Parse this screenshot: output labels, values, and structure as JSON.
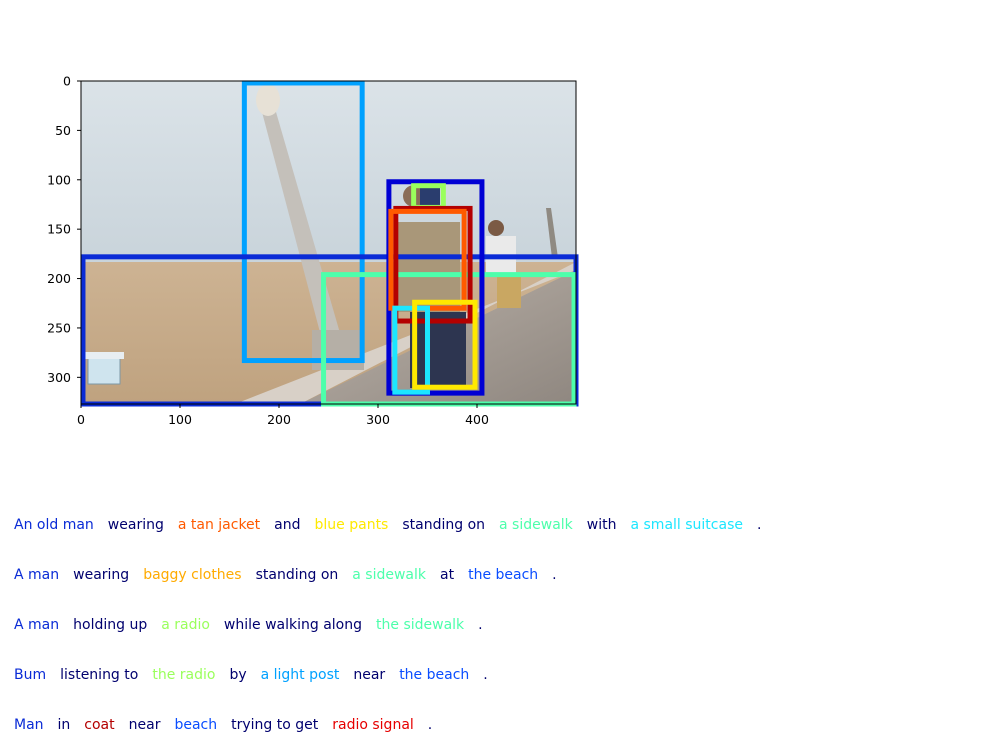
{
  "colors": {
    "phrase_old_man": "#0a2bd6",
    "phrase_tan_jacket": "#ff5a00",
    "phrase_blue_pants": "#ffe900",
    "phrase_sidewalk": "#4dffab",
    "phrase_suitcase": "#1ce6ff",
    "phrase_baggy_clothes": "#ffab00",
    "phrase_beach": "#0a4dff",
    "phrase_radio": "#9aff5c",
    "phrase_light_post": "#00a1ff",
    "phrase_coat": "#b40000",
    "phrase_radio_signal": "#e60000",
    "connector": "#00006e"
  },
  "plot": {
    "x_ticks": [
      "0",
      "100",
      "200",
      "300",
      "400"
    ],
    "y_ticks": [
      "0",
      "50",
      "100",
      "150",
      "200",
      "250",
      "300"
    ],
    "xlim": [
      0,
      500
    ],
    "ylim": [
      0,
      327
    ]
  },
  "boxes": [
    {
      "label": "a light post",
      "color": "#00a1ff",
      "x0": 165,
      "y0": 2,
      "x1": 284,
      "y1": 283
    },
    {
      "label": "the beach",
      "color": "#0a2bd6",
      "x0": 2,
      "y0": 178,
      "x1": 500,
      "y1": 327
    },
    {
      "label": "a sidewalk",
      "color": "#4dffab",
      "x0": 245,
      "y0": 196,
      "x1": 498,
      "y1": 327
    },
    {
      "label": "An old man",
      "color": "#0000d4",
      "x0": 311,
      "y0": 102,
      "x1": 405,
      "y1": 316
    },
    {
      "label": "the radio",
      "color": "#9aff5c",
      "x0": 336,
      "y0": 106,
      "x1": 366,
      "y1": 128
    },
    {
      "label": "coat",
      "color": "#b40000",
      "x0": 318,
      "y0": 129,
      "x1": 393,
      "y1": 243
    },
    {
      "label": "a tan jacket",
      "color": "#ff5a00",
      "x0": 313,
      "y0": 132,
      "x1": 387,
      "y1": 230
    },
    {
      "label": "a small suitcase",
      "color": "#1ce6ff",
      "x0": 317,
      "y0": 230,
      "x1": 350,
      "y1": 315
    },
    {
      "label": "blue pants",
      "color": "#ffe900",
      "x0": 337,
      "y0": 224,
      "x1": 398,
      "y1": 310
    }
  ],
  "captions": [
    [
      {
        "text": "An old man",
        "color": "#0a2bd6"
      },
      {
        "text": "wearing",
        "color": "#00006e"
      },
      {
        "text": "a tan jacket",
        "color": "#ff5a00"
      },
      {
        "text": "and",
        "color": "#00006e"
      },
      {
        "text": "blue pants",
        "color": "#ffe900"
      },
      {
        "text": "standing on",
        "color": "#00006e"
      },
      {
        "text": "a sidewalk",
        "color": "#4dffab"
      },
      {
        "text": "with",
        "color": "#00006e"
      },
      {
        "text": "a small suitcase",
        "color": "#1ce6ff"
      },
      {
        "text": ".",
        "color": "#00006e"
      }
    ],
    [
      {
        "text": "A man",
        "color": "#0a2bd6"
      },
      {
        "text": "wearing",
        "color": "#00006e"
      },
      {
        "text": "baggy clothes",
        "color": "#ffab00"
      },
      {
        "text": "standing on",
        "color": "#00006e"
      },
      {
        "text": "a sidewalk",
        "color": "#4dffab"
      },
      {
        "text": "at",
        "color": "#00006e"
      },
      {
        "text": "the beach",
        "color": "#0a4dff"
      },
      {
        "text": ".",
        "color": "#00006e"
      }
    ],
    [
      {
        "text": "A man",
        "color": "#0a2bd6"
      },
      {
        "text": "holding up",
        "color": "#00006e"
      },
      {
        "text": "a radio",
        "color": "#9aff5c"
      },
      {
        "text": "while walking along",
        "color": "#00006e"
      },
      {
        "text": "the sidewalk",
        "color": "#4dffab"
      },
      {
        "text": ".",
        "color": "#00006e"
      }
    ],
    [
      {
        "text": "Bum",
        "color": "#0a2bd6"
      },
      {
        "text": "listening to",
        "color": "#00006e"
      },
      {
        "text": "the radio",
        "color": "#9aff5c"
      },
      {
        "text": "by",
        "color": "#00006e"
      },
      {
        "text": "a light post",
        "color": "#00a1ff"
      },
      {
        "text": "near",
        "color": "#00006e"
      },
      {
        "text": "the beach",
        "color": "#0a4dff"
      },
      {
        "text": ".",
        "color": "#00006e"
      }
    ],
    [
      {
        "text": "Man",
        "color": "#0a2bd6"
      },
      {
        "text": "in",
        "color": "#00006e"
      },
      {
        "text": "coat",
        "color": "#b40000"
      },
      {
        "text": "near",
        "color": "#00006e"
      },
      {
        "text": "beach",
        "color": "#0a4dff"
      },
      {
        "text": "trying to get",
        "color": "#00006e"
      },
      {
        "text": "radio signal",
        "color": "#e60000"
      },
      {
        "text": ".",
        "color": "#00006e"
      }
    ]
  ]
}
